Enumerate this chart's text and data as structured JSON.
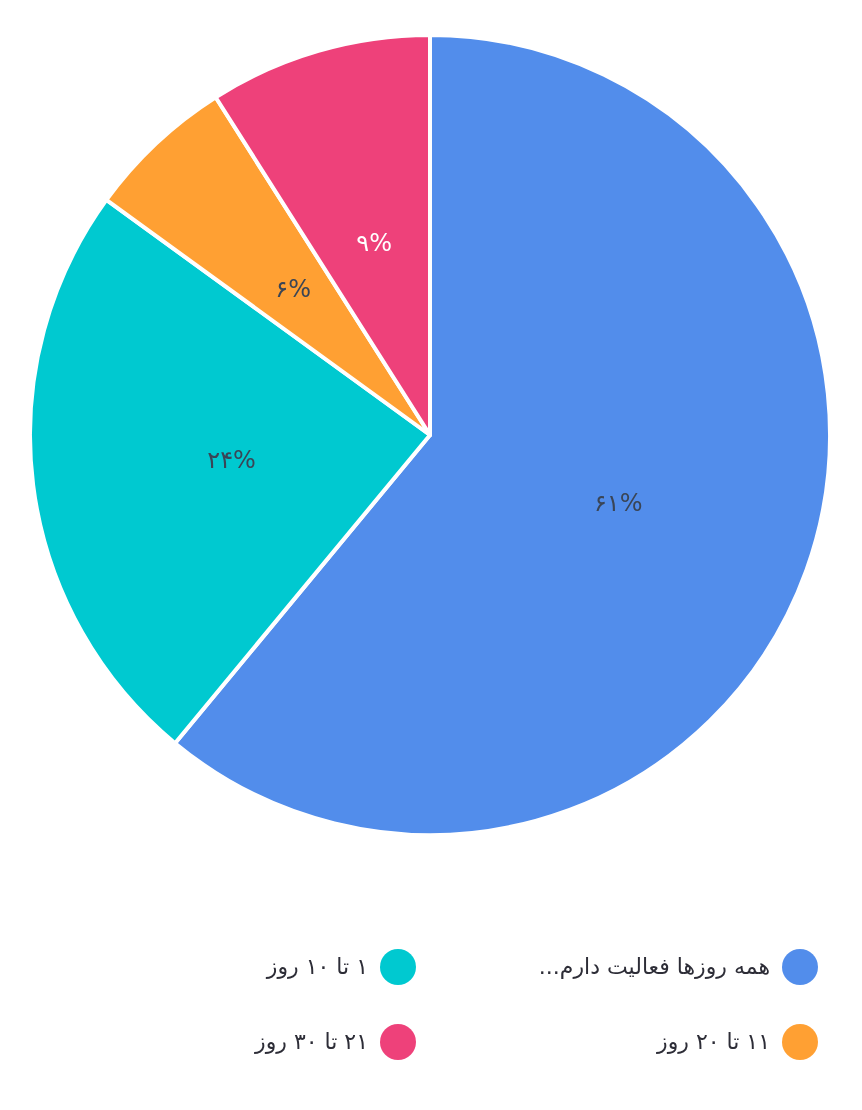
{
  "chart_data": {
    "type": "pie",
    "categories": [
      "همه روزها فعالیت دارم...",
      "۱ تا ۱۰ روز",
      "۱۱ تا ۲۰ روز",
      "۲۱ تا ۳۰ روز"
    ],
    "values": [
      61,
      24,
      6,
      9
    ],
    "colors": [
      "#528deb",
      "#00c9d0",
      "#ffa033",
      "#ee417a"
    ],
    "value_labels": [
      "۶۱%",
      "۲۴%",
      "۶%",
      "۹%"
    ],
    "legend": "bottom"
  }
}
